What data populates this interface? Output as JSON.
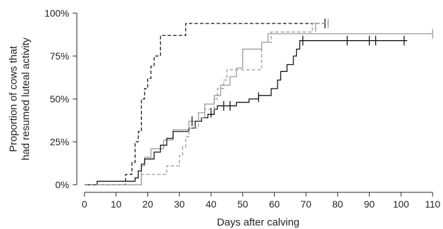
{
  "chart_data": {
    "type": "line",
    "title": "",
    "xlabel": "Days after calving",
    "ylabel": [
      "Proportion of cows that",
      "had resumed luteal activity"
    ],
    "xlim": [
      0,
      110
    ],
    "ylim": [
      0,
      100
    ],
    "xticks": [
      "0",
      "10",
      "20",
      "30",
      "40",
      "50",
      "60",
      "70",
      "80",
      "90",
      "100",
      "110"
    ],
    "yticks": [
      "0%",
      "25%",
      "50%",
      "75%",
      "100%"
    ],
    "grid": false,
    "legend": "none",
    "series": [
      {
        "color": "#111111",
        "dash": true,
        "points": [
          [
            0,
            0
          ],
          [
            13,
            0
          ],
          [
            13,
            6
          ],
          [
            15,
            6
          ],
          [
            15,
            13
          ],
          [
            16,
            13
          ],
          [
            16,
            25
          ],
          [
            17,
            25
          ],
          [
            17,
            31
          ],
          [
            18,
            31
          ],
          [
            18,
            50
          ],
          [
            19,
            50
          ],
          [
            19,
            56
          ],
          [
            20,
            56
          ],
          [
            20,
            62
          ],
          [
            21,
            62
          ],
          [
            21,
            69
          ],
          [
            22,
            69
          ],
          [
            22,
            75
          ],
          [
            24,
            75
          ],
          [
            24,
            87
          ],
          [
            32,
            87
          ],
          [
            32,
            94
          ],
          [
            76,
            94
          ]
        ],
        "censored": [
          [
            76,
            94
          ]
        ]
      },
      {
        "color": "#999999",
        "dash": false,
        "points": [
          [
            0,
            0
          ],
          [
            18,
            0
          ],
          [
            18,
            11
          ],
          [
            19,
            11
          ],
          [
            19,
            16
          ],
          [
            21,
            16
          ],
          [
            21,
            21
          ],
          [
            25,
            21
          ],
          [
            25,
            26
          ],
          [
            28,
            26
          ],
          [
            28,
            32
          ],
          [
            33,
            32
          ],
          [
            33,
            37
          ],
          [
            36,
            37
          ],
          [
            36,
            42
          ],
          [
            38,
            42
          ],
          [
            38,
            47
          ],
          [
            41,
            47
          ],
          [
            41,
            52
          ],
          [
            43,
            52
          ],
          [
            43,
            58
          ],
          [
            46,
            58
          ],
          [
            46,
            63
          ],
          [
            48,
            63
          ],
          [
            48,
            68
          ],
          [
            50,
            68
          ],
          [
            50,
            79
          ],
          [
            56,
            79
          ],
          [
            56,
            83
          ],
          [
            58,
            83
          ],
          [
            58,
            88
          ],
          [
            110,
            88
          ]
        ],
        "censored": [
          [
            110,
            88
          ]
        ]
      },
      {
        "color": "#111111",
        "dash": false,
        "points": [
          [
            0,
            0
          ],
          [
            4,
            0
          ],
          [
            4,
            2
          ],
          [
            16,
            2
          ],
          [
            16,
            4
          ],
          [
            17,
            4
          ],
          [
            17,
            8
          ],
          [
            18,
            8
          ],
          [
            18,
            12
          ],
          [
            19,
            12
          ],
          [
            19,
            15
          ],
          [
            22,
            15
          ],
          [
            22,
            19
          ],
          [
            24,
            19
          ],
          [
            24,
            23
          ],
          [
            26,
            23
          ],
          [
            26,
            27
          ],
          [
            28,
            27
          ],
          [
            28,
            31
          ],
          [
            33,
            31
          ],
          [
            33,
            33
          ],
          [
            35,
            33
          ],
          [
            35,
            37
          ],
          [
            37,
            37
          ],
          [
            37,
            39
          ],
          [
            39,
            39
          ],
          [
            39,
            41
          ],
          [
            41,
            41
          ],
          [
            41,
            44
          ],
          [
            42,
            44
          ],
          [
            42,
            46
          ],
          [
            48,
            46
          ],
          [
            48,
            48
          ],
          [
            52,
            48
          ],
          [
            52,
            50
          ],
          [
            55,
            50
          ],
          [
            55,
            52
          ],
          [
            59,
            52
          ],
          [
            59,
            56
          ],
          [
            61,
            56
          ],
          [
            61,
            61
          ],
          [
            62,
            61
          ],
          [
            62,
            66
          ],
          [
            64,
            66
          ],
          [
            64,
            70
          ],
          [
            66,
            70
          ],
          [
            66,
            75
          ],
          [
            67,
            75
          ],
          [
            67,
            79
          ],
          [
            68,
            79
          ],
          [
            68,
            84
          ],
          [
            102,
            84
          ]
        ],
        "censored": [
          [
            34,
            37
          ],
          [
            40,
            42
          ],
          [
            44,
            46
          ],
          [
            46,
            46
          ],
          [
            55,
            51
          ],
          [
            69,
            84
          ],
          [
            83,
            84
          ],
          [
            90,
            84
          ],
          [
            92,
            84
          ],
          [
            101,
            84
          ]
        ]
      },
      {
        "color": "#999999",
        "dash": true,
        "points": [
          [
            0,
            0
          ],
          [
            18,
            0
          ],
          [
            18,
            6
          ],
          [
            26,
            6
          ],
          [
            26,
            11
          ],
          [
            30,
            11
          ],
          [
            30,
            17
          ],
          [
            31,
            17
          ],
          [
            31,
            22
          ],
          [
            32,
            22
          ],
          [
            32,
            28
          ],
          [
            33,
            28
          ],
          [
            33,
            33
          ],
          [
            36,
            33
          ],
          [
            36,
            39
          ],
          [
            38,
            39
          ],
          [
            38,
            44
          ],
          [
            41,
            44
          ],
          [
            41,
            50
          ],
          [
            42,
            50
          ],
          [
            42,
            56
          ],
          [
            44,
            56
          ],
          [
            44,
            61
          ],
          [
            45,
            61
          ],
          [
            45,
            67
          ],
          [
            56,
            67
          ],
          [
            56,
            83
          ],
          [
            59,
            83
          ],
          [
            59,
            89
          ],
          [
            72,
            89
          ],
          [
            72,
            94
          ],
          [
            77,
            94
          ]
        ],
        "censored": [
          [
            73,
            92
          ],
          [
            77,
            94
          ]
        ]
      }
    ]
  }
}
